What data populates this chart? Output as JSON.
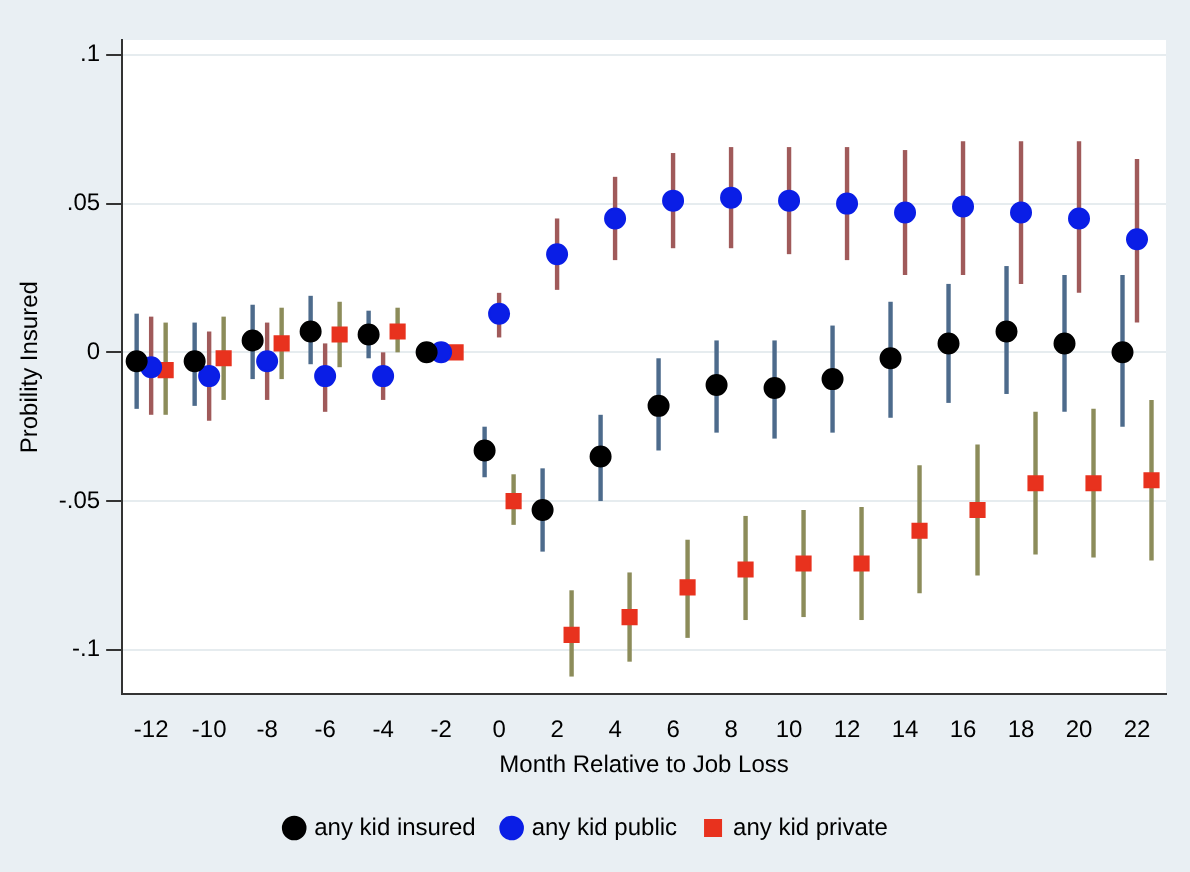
{
  "chart_data": {
    "type": "scatter",
    "xlabel": "Month Relative to Job Loss",
    "ylabel": "Probility Insured",
    "xlim": [
      -13,
      23
    ],
    "xticks": [
      -12,
      -10,
      -8,
      -6,
      -4,
      -2,
      0,
      2,
      4,
      6,
      8,
      10,
      12,
      14,
      16,
      18,
      20,
      22
    ],
    "ylim": [
      -0.115,
      0.105
    ],
    "yticks": [
      {
        "value": -0.1,
        "label": "-.1"
      },
      {
        "value": -0.05,
        "label": "-.05"
      },
      0,
      {
        "value": 0.05,
        "label": ".05"
      },
      {
        "value": 0.1,
        "label": ".1"
      }
    ],
    "grid": "y",
    "legend": "bottom",
    "series": [
      {
        "name": "any kid insured",
        "color": "#000000",
        "marker": "circle",
        "x": [
          -12.5,
          -10.5,
          -8.5,
          -6.5,
          -4.5,
          -2.5,
          -0.5,
          1.5,
          3.5,
          5.5,
          7.5,
          9.5,
          11.5,
          13.5,
          15.5,
          17.5,
          19.5,
          21.5
        ],
        "values": [
          -0.003,
          -0.003,
          0.004,
          0.007,
          0.006,
          0,
          -0.033,
          -0.053,
          -0.035,
          -0.018,
          -0.011,
          -0.012,
          -0.009,
          -0.002,
          0.003,
          0.007,
          0.003,
          0
        ],
        "errors": [
          [
            -0.019,
            0.013
          ],
          [
            -0.018,
            0.01
          ],
          [
            -0.009,
            0.016
          ],
          [
            -0.004,
            0.019
          ],
          [
            -0.002,
            0.014
          ],
          null,
          [
            -0.042,
            -0.025
          ],
          [
            -0.067,
            -0.039
          ],
          [
            -0.05,
            -0.021
          ],
          [
            -0.033,
            -0.002
          ],
          [
            -0.027,
            0.004
          ],
          [
            -0.029,
            0.004
          ],
          [
            -0.027,
            0.009
          ],
          [
            -0.022,
            0.017
          ],
          [
            -0.017,
            0.023
          ],
          [
            -0.014,
            0.029
          ],
          [
            -0.02,
            0.026
          ],
          [
            -0.025,
            0.026
          ]
        ]
      },
      {
        "name": "any kid public",
        "color": "#0a1ee6",
        "marker": "circle",
        "x": [
          -12,
          -10,
          -8,
          -6,
          -4,
          -2,
          0,
          2,
          4,
          6,
          8,
          10,
          12,
          14,
          16,
          18,
          20,
          22
        ],
        "values": [
          -0.005,
          -0.008,
          -0.003,
          -0.008,
          -0.008,
          0,
          0.013,
          0.033,
          0.045,
          0.051,
          0.052,
          0.051,
          0.05,
          0.047,
          0.049,
          0.047,
          0.045,
          0.038
        ],
        "errors": [
          [
            -0.021,
            0.012
          ],
          [
            -0.023,
            0.007
          ],
          [
            -0.016,
            0.01
          ],
          [
            -0.02,
            0.003
          ],
          [
            -0.016,
            0.0
          ],
          null,
          [
            0.005,
            0.02
          ],
          [
            0.021,
            0.045
          ],
          [
            0.031,
            0.059
          ],
          [
            0.035,
            0.067
          ],
          [
            0.035,
            0.069
          ],
          [
            0.033,
            0.069
          ],
          [
            0.031,
            0.069
          ],
          [
            0.026,
            0.068
          ],
          [
            0.026,
            0.071
          ],
          [
            0.023,
            0.071
          ],
          [
            0.02,
            0.071
          ],
          [
            0.01,
            0.065
          ]
        ]
      },
      {
        "name": "any kid private",
        "color": "#e8321e",
        "marker": "square",
        "x": [
          -11.5,
          -9.5,
          -7.5,
          -5.5,
          -3.5,
          -1.5,
          0.5,
          2.5,
          4.5,
          6.5,
          8.5,
          10.5,
          12.5,
          14.5,
          16.5,
          18.5,
          20.5,
          22.5
        ],
        "values": [
          -0.006,
          -0.002,
          0.003,
          0.006,
          0.007,
          0,
          -0.05,
          -0.095,
          -0.089,
          -0.079,
          -0.073,
          -0.071,
          -0.071,
          -0.06,
          -0.053,
          -0.044,
          -0.044,
          -0.043
        ],
        "errors": [
          [
            -0.021,
            0.01
          ],
          [
            -0.016,
            0.012
          ],
          [
            -0.009,
            0.015
          ],
          [
            -0.005,
            0.017
          ],
          [
            0.0,
            0.015
          ],
          null,
          [
            -0.058,
            -0.041
          ],
          [
            -0.109,
            -0.08
          ],
          [
            -0.104,
            -0.074
          ],
          [
            -0.096,
            -0.063
          ],
          [
            -0.09,
            -0.055
          ],
          [
            -0.089,
            -0.053
          ],
          [
            -0.09,
            -0.052
          ],
          [
            -0.081,
            -0.038
          ],
          [
            -0.075,
            -0.031
          ],
          [
            -0.068,
            -0.02
          ],
          [
            -0.069,
            -0.019
          ],
          [
            -0.07,
            -0.016
          ]
        ]
      }
    ]
  }
}
